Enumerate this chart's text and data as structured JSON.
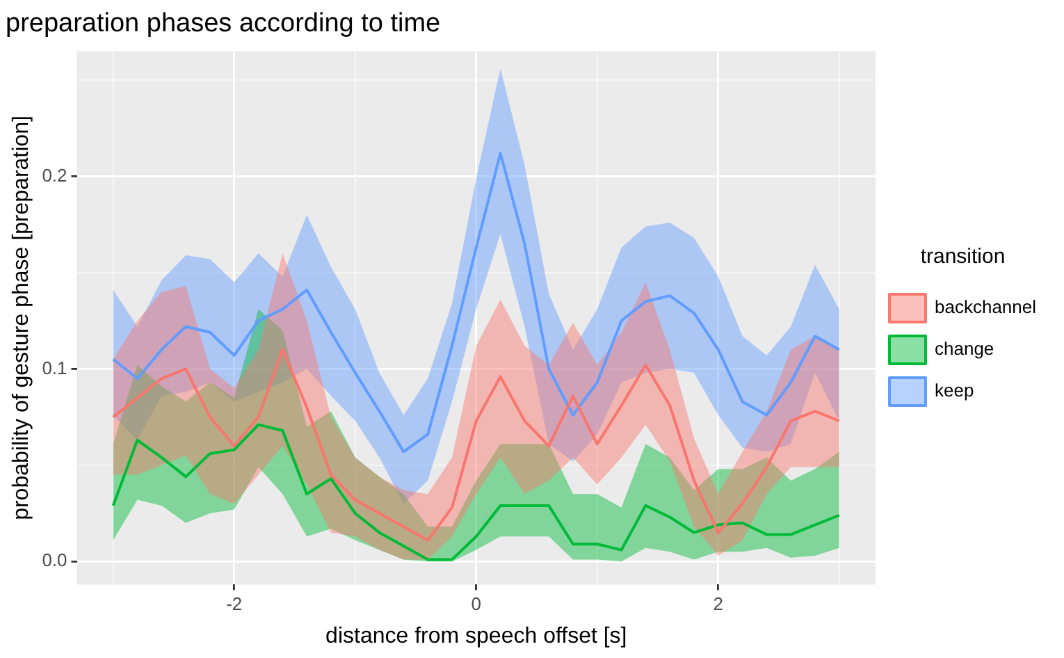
{
  "chart_data": {
    "type": "line",
    "title": "preparation phases according to time",
    "xlabel": "distance from speech offset [s]",
    "ylabel": "probability of gesture phase [preparation]",
    "legend_title": "transition",
    "legend": "right",
    "grid": true,
    "x": [
      -3,
      -2.8,
      -2.6,
      -2.4,
      -2.2,
      -2,
      -1.8,
      -1.6,
      -1.4,
      -1.2,
      -1,
      -0.8,
      -0.6,
      -0.4,
      -0.2,
      0,
      0.2,
      0.4,
      0.6,
      0.8,
      1,
      1.2,
      1.4,
      1.6,
      1.8,
      2,
      2.2,
      2.4,
      2.6,
      2.8,
      3
    ],
    "xlim": [
      -3.3,
      3.3
    ],
    "xticks": [
      {
        "value": -3,
        "label": null
      },
      -2,
      {
        "value": -1,
        "label": null
      },
      0,
      {
        "value": 1,
        "label": null
      },
      2,
      {
        "value": 3,
        "label": null
      }
    ],
    "ylim": [
      -0.012,
      0.265
    ],
    "yticks": [
      {
        "value": 0,
        "label": "0.0"
      },
      {
        "value": 0.05,
        "label": null
      },
      0.1,
      {
        "value": 0.15,
        "label": null
      },
      0.2,
      {
        "value": 0.25,
        "label": null
      }
    ],
    "series": [
      {
        "name": "backchannel",
        "color": "#f8766d",
        "values": [
          0.075,
          0.085,
          0.095,
          0.1,
          0.075,
          0.06,
          0.075,
          0.11,
          0.08,
          0.045,
          0.032,
          0.025,
          0.018,
          0.011,
          0.028,
          0.073,
          0.096,
          0.073,
          0.06,
          0.086,
          0.061,
          0.081,
          0.102,
          0.081,
          0.042,
          0.015,
          0.03,
          0.049,
          0.073,
          0.078,
          0.073
        ],
        "lower": [
          0.045,
          0.045,
          0.05,
          0.055,
          0.035,
          0.03,
          0.045,
          0.06,
          0.04,
          0.015,
          0.013,
          0.006,
          0.001,
          0.001,
          0.013,
          0.035,
          0.054,
          0.035,
          0.042,
          0.054,
          0.04,
          0.054,
          0.071,
          0.052,
          0.018,
          0.003,
          0.011,
          0.035,
          0.049,
          0.049,
          0.049
        ],
        "upper": [
          0.105,
          0.125,
          0.14,
          0.143,
          0.1,
          0.09,
          0.11,
          0.16,
          0.125,
          0.075,
          0.054,
          0.044,
          0.037,
          0.035,
          0.054,
          0.112,
          0.136,
          0.112,
          0.102,
          0.124,
          0.102,
          0.119,
          0.145,
          0.11,
          0.064,
          0.035,
          0.057,
          0.078,
          0.11,
          0.117,
          0.111
        ]
      },
      {
        "name": "change",
        "color": "#00ba38",
        "values": [
          0.029,
          0.063,
          0.054,
          0.044,
          0.056,
          0.058,
          0.071,
          0.068,
          0.035,
          0.043,
          0.025,
          0.015,
          0.008,
          0.001,
          0.001,
          0.013,
          0.029,
          0.029,
          0.029,
          0.009,
          0.009,
          0.006,
          0.029,
          0.023,
          0.015,
          0.019,
          0.02,
          0.014,
          0.014,
          0.019,
          0.024
        ],
        "lower": [
          0.011,
          0.032,
          0.029,
          0.02,
          0.025,
          0.027,
          0.049,
          0.035,
          0.013,
          0.017,
          0.011,
          0.006,
          0.001,
          0,
          0,
          0.006,
          0.013,
          0.013,
          0.013,
          0.001,
          0.001,
          0,
          0.007,
          0.005,
          0.001,
          0.005,
          0.005,
          0.007,
          0.002,
          0.003,
          0.007
        ],
        "upper": [
          0.061,
          0.102,
          0.091,
          0.083,
          0.093,
          0.085,
          0.131,
          0.12,
          0.07,
          0.078,
          0.054,
          0.044,
          0.035,
          0.018,
          0.018,
          0.042,
          0.061,
          0.061,
          0.061,
          0.035,
          0.035,
          0.028,
          0.061,
          0.054,
          0.037,
          0.048,
          0.048,
          0.054,
          0.042,
          0.048,
          0.057
        ]
      },
      {
        "name": "keep",
        "color": "#619cff",
        "values": [
          0.105,
          0.095,
          0.11,
          0.122,
          0.119,
          0.107,
          0.125,
          0.131,
          0.141,
          0.119,
          0.098,
          0.078,
          0.057,
          0.066,
          0.112,
          0.163,
          0.212,
          0.165,
          0.1,
          0.076,
          0.093,
          0.125,
          0.135,
          0.138,
          0.129,
          0.11,
          0.083,
          0.076,
          0.093,
          0.117,
          0.11
        ],
        "lower": [
          0.076,
          0.063,
          0.086,
          0.088,
          0.093,
          0.083,
          0.088,
          0.093,
          0.1,
          0.086,
          0.073,
          0.054,
          0.03,
          0.042,
          0.083,
          0.131,
          0.17,
          0.122,
          0.061,
          0.052,
          0.066,
          0.093,
          0.098,
          0.1,
          0.098,
          0.076,
          0.059,
          0.057,
          0.061,
          0.098,
          0.073
        ],
        "upper": [
          0.141,
          0.122,
          0.146,
          0.159,
          0.157,
          0.145,
          0.16,
          0.148,
          0.18,
          0.153,
          0.131,
          0.098,
          0.076,
          0.095,
          0.134,
          0.199,
          0.256,
          0.206,
          0.139,
          0.11,
          0.131,
          0.163,
          0.174,
          0.176,
          0.168,
          0.148,
          0.117,
          0.107,
          0.122,
          0.154,
          0.131
        ]
      }
    ]
  }
}
